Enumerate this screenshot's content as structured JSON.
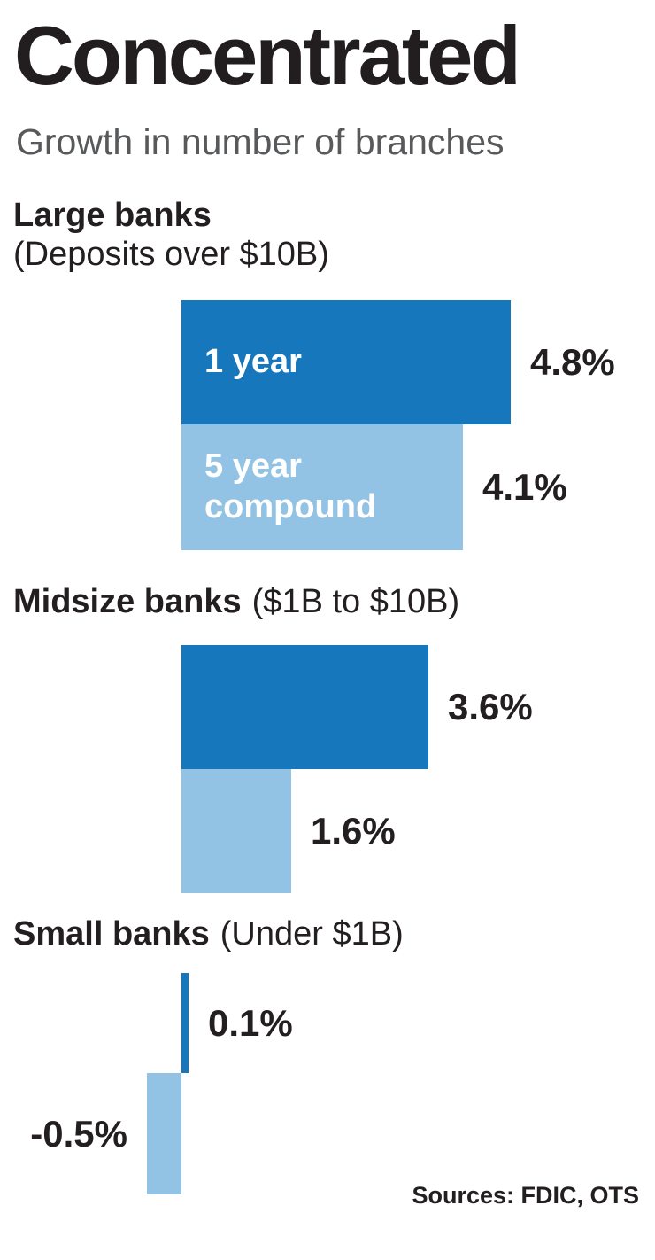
{
  "chart_data": {
    "type": "bar",
    "orientation": "horizontal",
    "title": "Concentrated",
    "subtitle": "Growth in number of branches",
    "value_unit": "%",
    "xlim": [
      -0.5,
      4.8
    ],
    "grid": false,
    "legend_position": "labels-inside-first-group-bars",
    "series": [
      {
        "name": "1 year",
        "color": "#1777bd"
      },
      {
        "name": "5 year compound",
        "color": "#92c3e4"
      }
    ],
    "groups": [
      {
        "label": "Large banks",
        "qualifier": "(Deposits over $10B)",
        "values": [
          4.8,
          4.1
        ],
        "value_labels": [
          "4.8%",
          "4.1%"
        ]
      },
      {
        "label": "Midsize banks",
        "qualifier": "($1B to $10B)",
        "values": [
          3.6,
          1.6
        ],
        "value_labels": [
          "3.6%",
          "1.6%"
        ]
      },
      {
        "label": "Small banks",
        "qualifier": "(Under $1B)",
        "values": [
          0.1,
          -0.5
        ],
        "value_labels": [
          "0.1%",
          "-0.5%"
        ]
      }
    ],
    "source": "Sources: FDIC, OTS"
  }
}
